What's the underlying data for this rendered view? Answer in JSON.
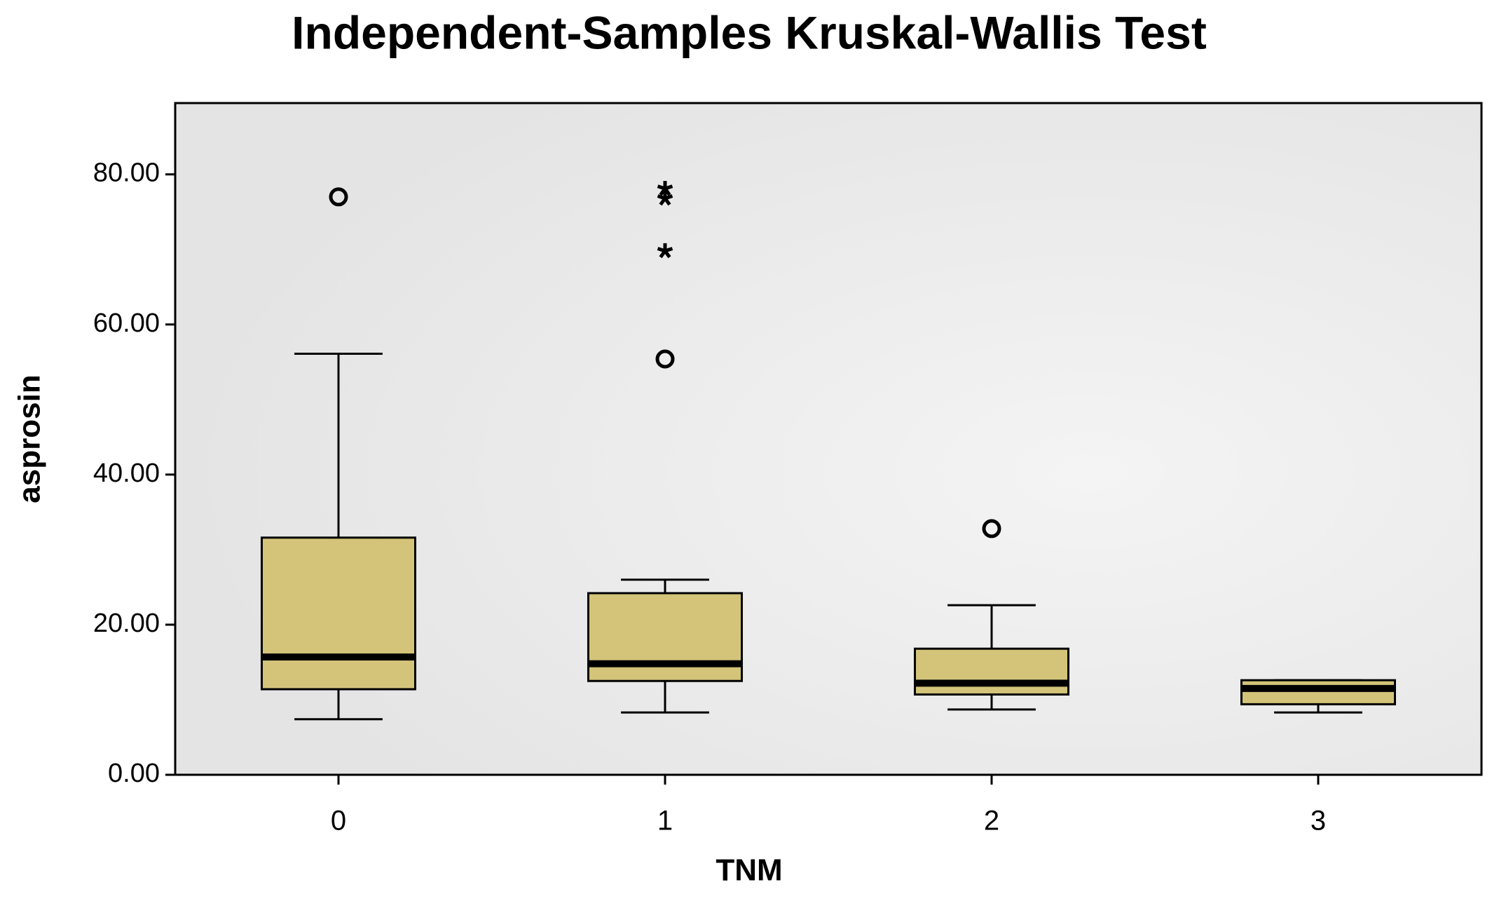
{
  "chart_data": {
    "type": "box",
    "title": "Independent-Samples Kruskal-Wallis Test",
    "x_label": "TNM",
    "y_label": "asprosin",
    "categories": [
      "0",
      "1",
      "2",
      "3"
    ],
    "boxes": [
      {
        "low": 7.4,
        "q1": 11.4,
        "median": 15.7,
        "q3": 31.6,
        "high": 56.1,
        "outliers": [
          77.0
        ],
        "extremes": []
      },
      {
        "low": 8.3,
        "q1": 12.5,
        "median": 14.8,
        "q3": 24.2,
        "high": 26.0,
        "outliers": [
          55.4
        ],
        "extremes": [
          78.1,
          76.8,
          69.8
        ]
      },
      {
        "low": 8.7,
        "q1": 10.7,
        "median": 12.2,
        "q3": 16.8,
        "high": 22.6,
        "outliers": [
          32.8
        ],
        "extremes": []
      },
      {
        "low": 8.3,
        "q1": 9.4,
        "median": 11.5,
        "q3": 12.6,
        "high": 12.6,
        "outliers": [],
        "extremes": []
      }
    ],
    "color": "#d3c47a",
    "ylim": [
      0,
      89.5
    ],
    "yticks": [
      {
        "value": 0,
        "label": "0.00"
      },
      {
        "value": 20,
        "label": "20.00"
      },
      {
        "value": 40,
        "label": "40.00"
      },
      {
        "value": 60,
        "label": "60.00"
      },
      {
        "value": 80,
        "label": "80.00"
      }
    ]
  }
}
